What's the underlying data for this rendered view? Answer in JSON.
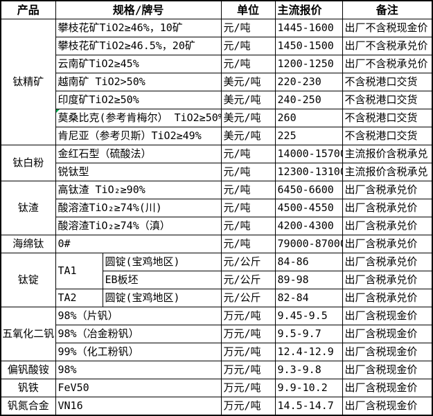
{
  "columns": [
    "产品",
    "规格/牌号",
    "单位",
    "主流报价",
    "备注"
  ],
  "colors": {
    "background": "#ffffff",
    "text": "#000000",
    "border": "#000000",
    "comment_marker": "#00a650"
  },
  "groups": [
    {
      "product": "钛精矿",
      "rows": [
        {
          "spec": "攀枝花矿TiO2≥46%，10矿",
          "unit": "元/吨",
          "price": "1445-1600",
          "note": "出厂不含税现金价"
        },
        {
          "spec": "攀枝花矿TiO2≥46.5%，20矿",
          "unit": "元/吨",
          "price": "1450-1500",
          "note": "出厂不含税承兑价"
        },
        {
          "spec": "云南矿TiO2≥45%",
          "unit": "元/吨",
          "price": "1200-1250",
          "note": "出厂不含税承兑价"
        },
        {
          "spec": "越南矿 TiO2>50%",
          "unit": "美元/吨",
          "price": "220-230",
          "note": "不含税港口交货"
        },
        {
          "spec": "印度矿TiO2≥50%",
          "unit": "美元/吨",
          "price": "240-250",
          "note": "不含税港口交货"
        },
        {
          "spec": "莫桑比克(参考肯梅尔） TiO2≥50%",
          "unit": "美元/吨",
          "price": "260",
          "note": "不含税港口交货",
          "comment_marker": true
        },
        {
          "spec": "肯尼亚（参考贝斯）TiO2≥49%",
          "unit": "美元/吨",
          "price": "225",
          "note": "不含税港口交货"
        }
      ]
    },
    {
      "product": "钛白粉",
      "rows": [
        {
          "spec": "金红石型（硫酸法）",
          "unit": "元/吨",
          "price": "14000-15700",
          "note": "主流报价含税承兑"
        },
        {
          "spec": "锐钛型",
          "unit": "元/吨",
          "price": "12300-13100",
          "note": "主流报价含税承兑"
        }
      ]
    },
    {
      "product": "钛渣",
      "rows": [
        {
          "spec": "高钛渣 TiO₂≥90%",
          "unit": "元/吨",
          "price": "6450-6600",
          "note": "出厂含税承兑价"
        },
        {
          "spec": "酸溶渣TiO₂≥74%(川)",
          "unit": "元/吨",
          "price": "4500-4550",
          "note": "出厂含税承兑价"
        },
        {
          "spec": "酸溶渣TiO₂≥74%（滇）",
          "unit": "元/吨",
          "price": "4200-4300",
          "note": "出厂含税承兑价"
        }
      ]
    },
    {
      "product": "海绵钛",
      "rows": [
        {
          "spec": "0#",
          "unit": "元/吨",
          "price": "79000-87000",
          "note": "出厂含税承兑价"
        }
      ]
    },
    {
      "product": "钛锭",
      "rows": [
        {
          "grade": "TA1",
          "merge_rows": 2,
          "spec": "圆锭(宝鸡地区)",
          "unit": "元/公斤",
          "price": "84-86",
          "note": "出厂含税承兑价"
        },
        {
          "spec": "EB板坯",
          "unit": "元/公斤",
          "price": "89-98",
          "note": "出厂含税承兑价"
        },
        {
          "grade": "TA2",
          "merge_rows": 1,
          "spec": "圆锭(宝鸡地区)",
          "unit": "元/公斤",
          "price": "82-84",
          "note": "出厂含税承兑价"
        }
      ]
    },
    {
      "product": "五氧化二钒",
      "rows": [
        {
          "spec": "98%（片钒）",
          "unit": "万元/吨",
          "price": "9.45-9.5",
          "note": "出厂含税现金价"
        },
        {
          "spec": "98%（冶金粉钒）",
          "unit": "万元/吨",
          "price": "9.5-9.7",
          "note": "出厂含税现金价"
        },
        {
          "spec": "99%（化工粉钒）",
          "unit": "万元/吨",
          "price": "12.4-12.9",
          "note": "出厂含税现金价"
        }
      ]
    },
    {
      "product": "偏钒酸铵",
      "rows": [
        {
          "spec": "98%",
          "unit": "万元/吨",
          "price": "9.3-9.8",
          "note": "出厂含税现金价"
        }
      ]
    },
    {
      "product": "钒铁",
      "rows": [
        {
          "spec": "FeV50",
          "unit": "万元/吨",
          "price": "9.9-10.2",
          "note": "出厂含税现金价"
        }
      ]
    },
    {
      "product": "钒氮合金",
      "rows": [
        {
          "spec": "VN16",
          "unit": "万元/吨",
          "price": "14.5-14.7",
          "note": "出厂含税现金价"
        }
      ]
    }
  ]
}
